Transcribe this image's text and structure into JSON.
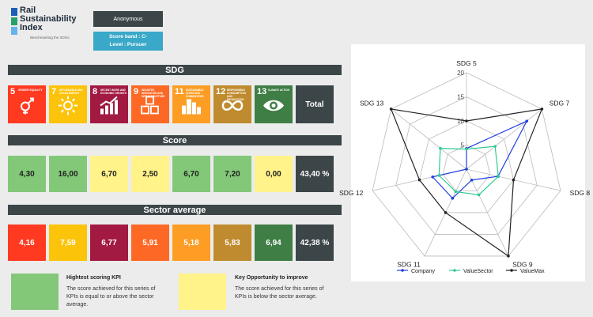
{
  "logo": {
    "line1": "Rail",
    "line2": "Sustainability",
    "line3": "Index",
    "tagline": "Benchmarking the SDGs"
  },
  "header": {
    "user": "Anonymous",
    "score_band": "Score band : C-",
    "level": "Level : Pursuer"
  },
  "sections": {
    "sdg": "SDG",
    "score": "Score",
    "sector_average": "Sector average"
  },
  "sdgs": [
    {
      "num": "5",
      "label": "GENDER EQUALITY",
      "color": "#ff3a21",
      "icon": "gender-icon"
    },
    {
      "num": "7",
      "label": "AFFORDABLE AND CLEAN ENERGY",
      "color": "#fcc30b",
      "icon": "sun-icon"
    },
    {
      "num": "8",
      "label": "DECENT WORK AND ECONOMIC GROWTH",
      "color": "#a21942",
      "icon": "growth-chart-icon"
    },
    {
      "num": "9",
      "label": "INDUSTRY, INNOVATION AND INFRASTRUCTURE",
      "color": "#fd6925",
      "icon": "cubes-icon"
    },
    {
      "num": "11",
      "label": "SUSTAINABLE CITIES AND COMMUNITIES",
      "color": "#fd9d24",
      "icon": "city-icon"
    },
    {
      "num": "12",
      "label": "RESPONSIBLE CONSUMPTION AND PRODUCTION",
      "color": "#bf8b2e",
      "icon": "infinity-icon"
    },
    {
      "num": "13",
      "label": "CLIMATE ACTION",
      "color": "#3f7e44",
      "icon": "eye-icon"
    }
  ],
  "total_label": "Total",
  "scores": [
    {
      "value": "4,30",
      "color": "#82c878"
    },
    {
      "value": "16,00",
      "color": "#82c878"
    },
    {
      "value": "6,70",
      "color": "#fff38a"
    },
    {
      "value": "2,50",
      "color": "#fff38a"
    },
    {
      "value": "6,70",
      "color": "#82c878"
    },
    {
      "value": "7,20",
      "color": "#82c878"
    },
    {
      "value": "0,00",
      "color": "#fff38a"
    }
  ],
  "score_total": "43,40 %",
  "averages": [
    "4,16",
    "7,59",
    "6,77",
    "5,91",
    "5,18",
    "5,83",
    "6,94"
  ],
  "average_total": "42,38 %",
  "legend": {
    "high": {
      "title": "Hightest scoring KPI",
      "desc": "The score achieved for this series of KPIs is equal to or above the sector average.",
      "color": "#82c878"
    },
    "opportunity": {
      "title": "Key Opportunity to improve",
      "desc": "The score achieved for this series of KPIs is below the sector average.",
      "color": "#fff38a"
    }
  },
  "chart_data": {
    "type": "radar",
    "axes": [
      "SDG 5",
      "SDG 7",
      "SDG 8",
      "SDG 9",
      "SDG 11",
      "SDG 12",
      "SDG 13"
    ],
    "rmax": 20,
    "ticks": [
      "5",
      "10",
      "15",
      "20"
    ],
    "series": [
      {
        "name": "Company",
        "color": "#1f3fe0",
        "values": [
          4.3,
          16.0,
          6.7,
          2.5,
          6.7,
          7.2,
          0.0
        ]
      },
      {
        "name": "ValueSector",
        "color": "#2ecc8f",
        "values": [
          4.16,
          7.59,
          6.77,
          5.91,
          5.18,
          5.83,
          6.94
        ]
      },
      {
        "name": "ValueMax",
        "color": "#222222",
        "values": [
          10,
          20,
          10,
          20,
          10,
          10,
          20
        ]
      }
    ]
  }
}
